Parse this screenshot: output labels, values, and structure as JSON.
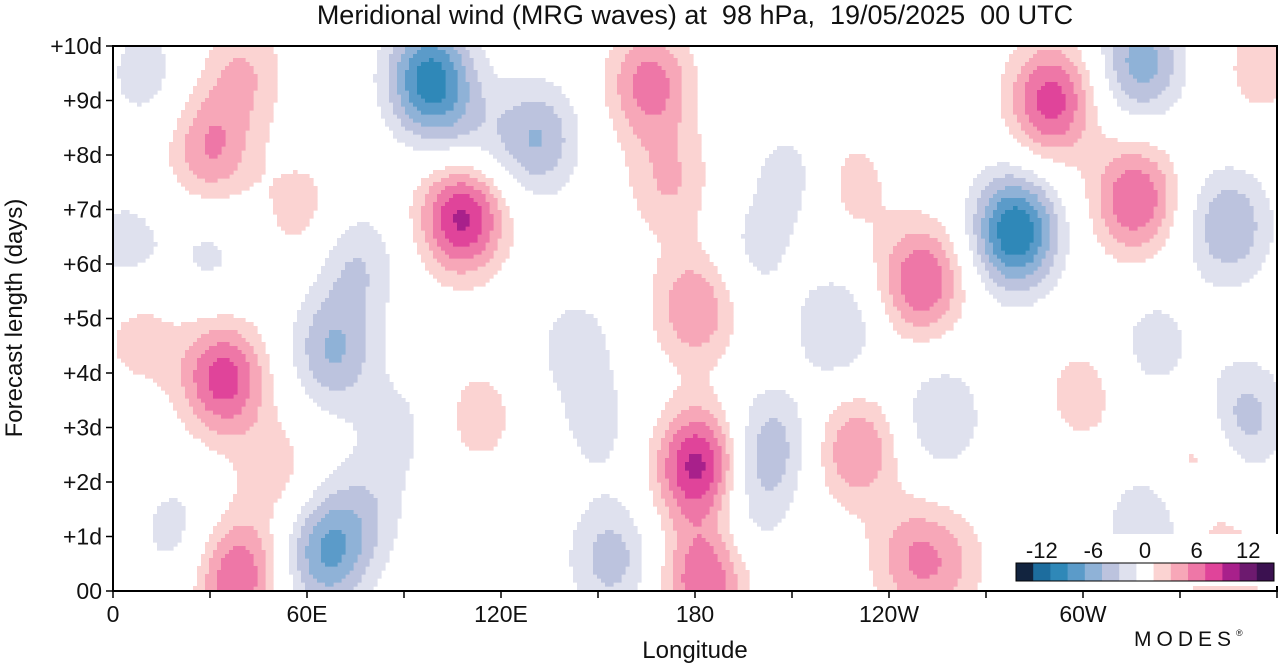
{
  "chart_data": {
    "type": "heatmap",
    "title": "Meridional wind (MRG waves) at  98 hPa,  19/05/2025  00 UTC",
    "xlabel": "Longitude",
    "ylabel": "Forecast length (days)",
    "x_ticks": [
      "0",
      "60E",
      "120E",
      "180",
      "120W",
      "60W"
    ],
    "x_tick_values": [
      0,
      60,
      120,
      180,
      240,
      300
    ],
    "xlim": [
      0,
      360
    ],
    "y_ticks": [
      "00",
      "+1d",
      "+2d",
      "+3d",
      "+4d",
      "+5d",
      "+6d",
      "+7d",
      "+8d",
      "+9d",
      "+10d"
    ],
    "ylim": [
      0,
      10
    ],
    "colorbar": {
      "tick_labels": [
        "-12",
        "-6",
        "0",
        "6",
        "12"
      ],
      "tick_values": [
        -12,
        -6,
        0,
        6,
        12
      ],
      "levels": [
        -14,
        -12,
        -10,
        -8,
        -6,
        -4,
        -2,
        2,
        4,
        6,
        8,
        10,
        12,
        14
      ],
      "colors": [
        "#12243f",
        "#1d6d9e",
        "#2f88b8",
        "#5b9bc9",
        "#8fb2d7",
        "#bcc3de",
        "#dfe1ee",
        "#ffffff",
        "#fbd3d2",
        "#f7a7b8",
        "#ee77a7",
        "#e0449a",
        "#a8208b",
        "#6d1a6f",
        "#3b1150"
      ],
      "placement": "bottom-right inside plot"
    },
    "grid": false,
    "features": [
      {
        "lon": 8,
        "day": 4.7,
        "value": 3
      },
      {
        "lon": 4,
        "day": 6.3,
        "value": -3
      },
      {
        "lon": 10,
        "day": 9.5,
        "value": -3
      },
      {
        "lon": 30,
        "day": 8.1,
        "value": 6
      },
      {
        "lon": 40,
        "day": 9.5,
        "value": 4
      },
      {
        "lon": 34,
        "day": 3.9,
        "value": 9
      },
      {
        "lon": 50,
        "day": 2.2,
        "value": 3
      },
      {
        "lon": 38,
        "day": 0.3,
        "value": 8
      },
      {
        "lon": 20,
        "day": 1.1,
        "value": -3
      },
      {
        "lon": 30,
        "day": 6.2,
        "value": -2.5
      },
      {
        "lon": 58,
        "day": 7.0,
        "value": 3
      },
      {
        "lon": 66,
        "day": 0.7,
        "value": -8
      },
      {
        "lon": 68,
        "day": 4.4,
        "value": -6
      },
      {
        "lon": 75,
        "day": 6.0,
        "value": -4
      },
      {
        "lon": 78,
        "day": 1.5,
        "value": -3
      },
      {
        "lon": 88,
        "day": 3.0,
        "value": -2.5
      },
      {
        "lon": 98,
        "day": 9.4,
        "value": -11
      },
      {
        "lon": 110,
        "day": 8.2,
        "value": -3
      },
      {
        "lon": 108,
        "day": 6.9,
        "value": 11
      },
      {
        "lon": 113,
        "day": 3.2,
        "value": 3
      },
      {
        "lon": 131,
        "day": 8.3,
        "value": -6
      },
      {
        "lon": 143,
        "day": 4.5,
        "value": -3
      },
      {
        "lon": 150,
        "day": 3.0,
        "value": -2.5
      },
      {
        "lon": 154,
        "day": 0.6,
        "value": -5
      },
      {
        "lon": 166,
        "day": 9.3,
        "value": 7
      },
      {
        "lon": 172,
        "day": 7.5,
        "value": 4
      },
      {
        "lon": 180,
        "day": 5.2,
        "value": 6
      },
      {
        "lon": 181,
        "day": 2.3,
        "value": 11
      },
      {
        "lon": 183,
        "day": 0.2,
        "value": 8
      },
      {
        "lon": 196,
        "day": 1.5,
        "value": -3
      },
      {
        "lon": 203,
        "day": 2.7,
        "value": -5
      },
      {
        "lon": 198,
        "day": 6.2,
        "value": -2.5
      },
      {
        "lon": 210,
        "day": 7.6,
        "value": -3
      },
      {
        "lon": 224,
        "day": 4.8,
        "value": -4
      },
      {
        "lon": 230,
        "day": 2.6,
        "value": 6
      },
      {
        "lon": 228,
        "day": 7.5,
        "value": 3
      },
      {
        "lon": 250,
        "day": 5.7,
        "value": 8
      },
      {
        "lon": 247,
        "day": 0.6,
        "value": 5
      },
      {
        "lon": 256,
        "day": 3.2,
        "value": -4
      },
      {
        "lon": 259,
        "day": 0.5,
        "value": 3
      },
      {
        "lon": 279,
        "day": 6.6,
        "value": -12
      },
      {
        "lon": 290,
        "day": 9.0,
        "value": 9
      },
      {
        "lon": 316,
        "day": 7.2,
        "value": 8
      },
      {
        "lon": 300,
        "day": 3.6,
        "value": 3
      },
      {
        "lon": 318,
        "day": 9.7,
        "value": -7
      },
      {
        "lon": 322,
        "day": 4.5,
        "value": -3
      },
      {
        "lon": 320,
        "day": 1.2,
        "value": -4
      },
      {
        "lon": 345,
        "day": 6.7,
        "value": -6
      },
      {
        "lon": 350,
        "day": 3.2,
        "value": -5
      },
      {
        "lon": 335,
        "day": 2.5,
        "value": 3
      },
      {
        "lon": 343,
        "day": 0.3,
        "value": 4
      },
      {
        "lon": 355,
        "day": 9.6,
        "value": 3
      }
    ]
  },
  "brand": "MODES",
  "brand_mark": "®"
}
